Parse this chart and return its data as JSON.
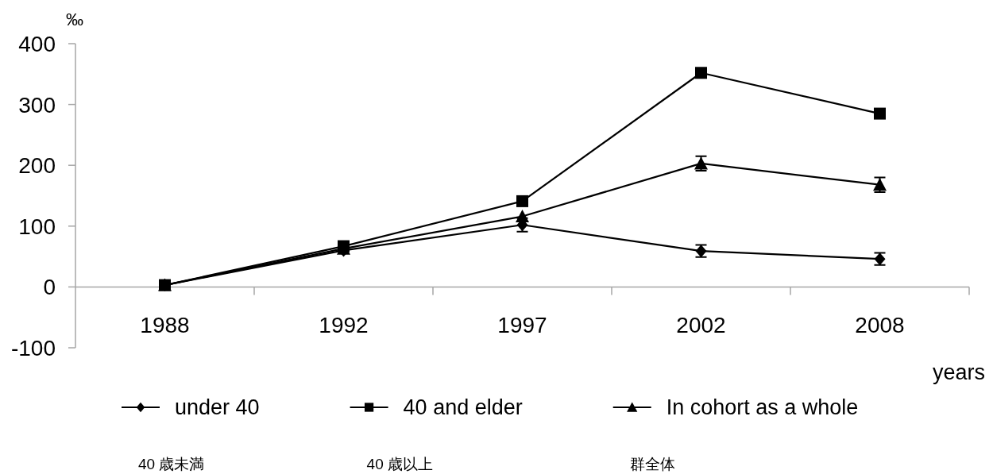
{
  "chart_data": {
    "type": "line",
    "ylabel": "‰",
    "xlabel": "years",
    "categories": [
      "1988",
      "1992",
      "1997",
      "2002",
      "2008"
    ],
    "series": [
      {
        "name": "under 40",
        "color": "#000000",
        "marker": "diamond",
        "values": [
          3,
          60,
          102,
          59,
          46
        ],
        "errors": [
          null,
          null,
          11,
          10,
          10
        ]
      },
      {
        "name": "40 and elder",
        "color": "#000000",
        "marker": "square",
        "values": [
          3,
          67,
          141,
          352,
          285
        ]
      },
      {
        "name": "In cohort as a whole",
        "color": "#000000",
        "marker": "triangle",
        "values": [
          3,
          63,
          116,
          203,
          168
        ],
        "errors": [
          null,
          null,
          null,
          12,
          12
        ]
      }
    ],
    "ylim": [
      -100,
      400
    ],
    "yticks": [
      -100,
      0,
      100,
      200,
      300,
      400
    ],
    "legend": "bottom",
    "line_style": "solid",
    "annotations": [
      "40 歳未満",
      "40 歳以上",
      "群全体"
    ]
  }
}
